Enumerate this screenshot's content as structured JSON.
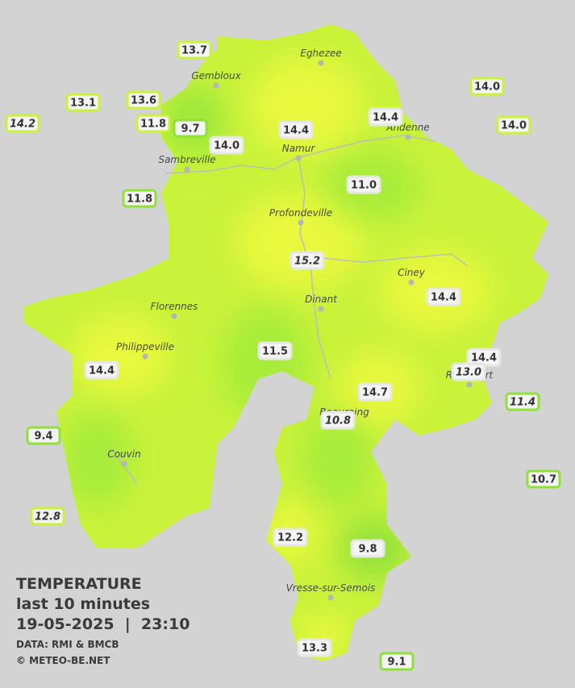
{
  "legend": {
    "title": "TEMPERATURE",
    "subtitle": "last 10 minutes",
    "timestamp": "19-05-2025  |  23:10",
    "source": "DATA: RMI & BMCB",
    "credit": "© METEO-BE.NET"
  },
  "towns": [
    "Eghezee",
    "Gembloux",
    "Andenne",
    "Namur",
    "Sambreville",
    "Profondeville",
    "Ciney",
    "Dinant",
    "Florennes",
    "Philippeville",
    "Rochefort",
    "Beauraing",
    "Couvin",
    "Vresse-sur-Semois"
  ],
  "stations": [
    "13.7",
    "13.1",
    "13.6",
    "14.2",
    "11.8",
    "9.7",
    "14.0",
    "14.4",
    "14.4",
    "14.0",
    "14.0",
    "11.8",
    "11.0",
    "15.2",
    "14.4",
    "14.4",
    "11.5",
    "14.4",
    "13.0",
    "14.7",
    "11.4",
    "10.8",
    "9.4",
    "12.8",
    "10.7",
    "12.2",
    "9.8",
    "13.3",
    "9.1"
  ]
}
